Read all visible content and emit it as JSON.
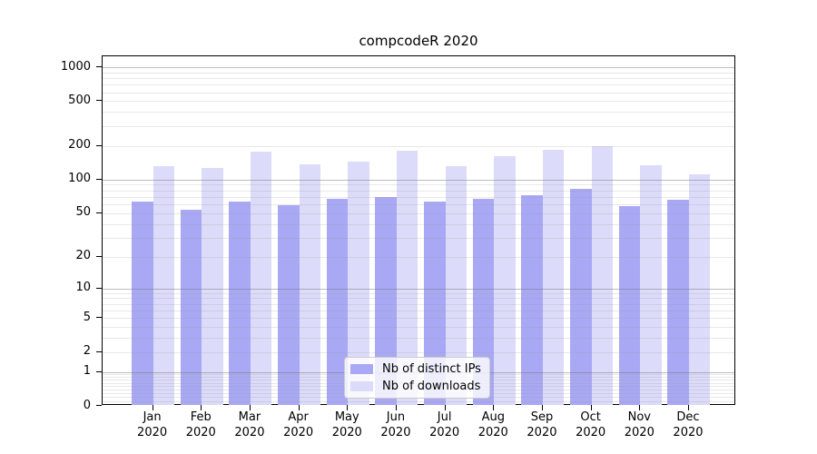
{
  "chart_data": {
    "type": "bar",
    "title": "compcodeR 2020",
    "categories": [
      "Jan 2020",
      "Feb 2020",
      "Mar 2020",
      "Apr 2020",
      "May 2020",
      "Jun 2020",
      "Jul 2020",
      "Aug 2020",
      "Sep 2020",
      "Oct 2020",
      "Nov 2020",
      "Dec 2020"
    ],
    "x_tick_line1": [
      "Jan",
      "Feb",
      "Mar",
      "Apr",
      "May",
      "Jun",
      "Jul",
      "Aug",
      "Sep",
      "Oct",
      "Nov",
      "Dec"
    ],
    "x_tick_line2": [
      "2020",
      "2020",
      "2020",
      "2020",
      "2020",
      "2020",
      "2020",
      "2020",
      "2020",
      "2020",
      "2020",
      "2020"
    ],
    "series": [
      {
        "name": "Nb of distinct IPs",
        "color": "#a9a8f4",
        "values": [
          63,
          54,
          64,
          59,
          67,
          70,
          63,
          67,
          73,
          82,
          58,
          66
        ]
      },
      {
        "name": "Nb of downloads",
        "color": "#dcdbf9",
        "values": [
          131,
          126,
          177,
          138,
          144,
          182,
          131,
          162,
          185,
          197,
          134,
          112
        ]
      }
    ],
    "y_axis": {
      "scale": "log1p",
      "ticks": [
        0,
        1,
        2,
        5,
        10,
        20,
        50,
        100,
        200,
        500,
        1000
      ],
      "range": [
        0,
        1000
      ]
    },
    "grid": {
      "horizontal": true,
      "major_at": [
        1,
        10,
        100,
        1000
      ],
      "minor": "log sub-decades"
    },
    "legend": {
      "position": "bottom-center",
      "items": [
        "Nb of distinct IPs",
        "Nb of downloads"
      ]
    }
  },
  "colors": {
    "bar_distinct_ips": "#a9a8f4",
    "bar_downloads": "#dcdbf9",
    "axis_frame": "#000000",
    "grid_major": "#bababa",
    "grid_minor": "#e6e6e6",
    "legend_border": "#cccccc",
    "background": "#ffffff"
  }
}
